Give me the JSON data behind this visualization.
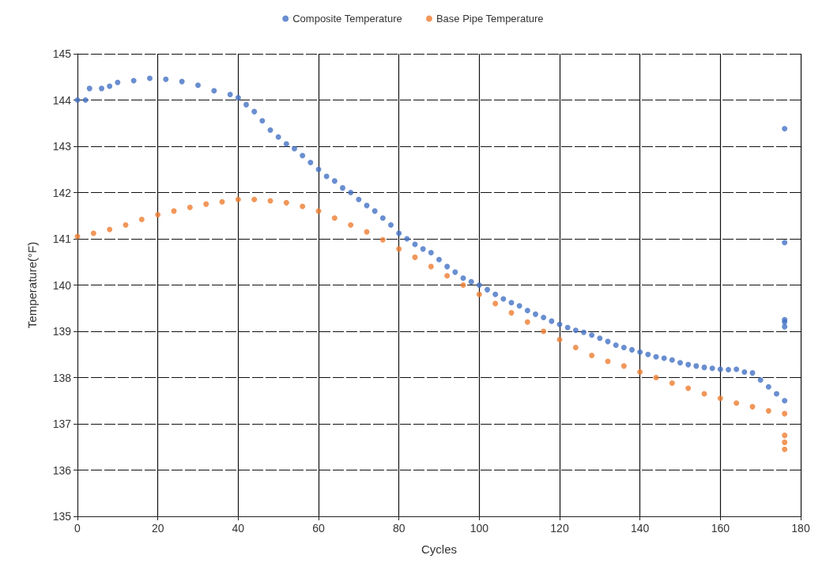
{
  "chart_data": {
    "type": "scatter",
    "xlabel": "Cycles",
    "ylabel": "Temperature(°F)",
    "xlim": [
      0,
      180
    ],
    "xticks": [
      0,
      20,
      40,
      60,
      80,
      100,
      120,
      140,
      160,
      180
    ],
    "ylim": [
      135,
      145
    ],
    "yticks": [
      135,
      136,
      137,
      138,
      139,
      140,
      141,
      142,
      143,
      144,
      145
    ],
    "grid": true,
    "legend": "top",
    "marker": "circle",
    "series": [
      {
        "name": "Composite Temperature",
        "color": "#4472c4",
        "x": [
          0,
          2,
          3,
          6,
          8,
          10,
          14,
          18,
          22,
          26,
          30,
          34,
          38,
          40,
          42,
          44,
          46,
          48,
          50,
          52,
          54,
          56,
          58,
          60,
          62,
          64,
          66,
          68,
          70,
          72,
          74,
          76,
          78,
          80,
          82,
          84,
          86,
          88,
          90,
          92,
          94,
          96,
          98,
          100,
          102,
          104,
          106,
          108,
          110,
          112,
          114,
          116,
          118,
          120,
          122,
          124,
          126,
          128,
          130,
          132,
          134,
          136,
          138,
          140,
          142,
          144,
          146,
          148,
          150,
          152,
          154,
          156,
          158,
          160,
          162,
          164,
          166,
          168,
          170,
          172,
          174,
          176,
          176,
          176,
          176,
          176,
          176
        ],
        "values": [
          144.0,
          144.0,
          144.25,
          144.25,
          144.3,
          144.38,
          144.42,
          144.47,
          144.45,
          144.4,
          144.32,
          144.2,
          144.12,
          144.05,
          143.9,
          143.75,
          143.55,
          143.35,
          143.2,
          143.05,
          142.95,
          142.8,
          142.65,
          142.5,
          142.35,
          142.25,
          142.1,
          142.0,
          141.85,
          141.72,
          141.6,
          141.45,
          141.3,
          141.12,
          141.0,
          140.88,
          140.78,
          140.7,
          140.55,
          140.4,
          140.28,
          140.15,
          140.07,
          140.0,
          139.9,
          139.8,
          139.7,
          139.62,
          139.55,
          139.45,
          139.37,
          139.3,
          139.22,
          139.15,
          139.08,
          139.02,
          138.98,
          138.92,
          138.85,
          138.78,
          138.7,
          138.65,
          138.6,
          138.55,
          138.5,
          138.45,
          138.42,
          138.38,
          138.32,
          138.28,
          138.25,
          138.22,
          138.2,
          138.18,
          138.17,
          138.18,
          138.12,
          138.1,
          137.95,
          137.8,
          137.65,
          137.5,
          143.38,
          140.92,
          139.25,
          139.2,
          139.1
        ]
      },
      {
        "name": "Base Pipe Temperature",
        "color": "#ed7d31",
        "x": [
          0,
          4,
          8,
          12,
          16,
          20,
          24,
          28,
          32,
          36,
          40,
          44,
          48,
          52,
          56,
          60,
          64,
          68,
          72,
          76,
          80,
          84,
          88,
          92,
          96,
          100,
          104,
          108,
          112,
          116,
          120,
          124,
          128,
          132,
          136,
          140,
          144,
          148,
          152,
          156,
          160,
          164,
          168,
          172,
          176,
          176,
          176,
          176
        ],
        "values": [
          141.05,
          141.12,
          141.2,
          141.3,
          141.42,
          141.52,
          141.6,
          141.68,
          141.75,
          141.8,
          141.85,
          141.85,
          141.82,
          141.78,
          141.7,
          141.6,
          141.45,
          141.3,
          141.15,
          140.98,
          140.78,
          140.6,
          140.4,
          140.2,
          140.0,
          139.8,
          139.6,
          139.4,
          139.2,
          139.0,
          138.82,
          138.65,
          138.48,
          138.35,
          138.25,
          138.12,
          138.0,
          137.88,
          137.77,
          137.65,
          137.55,
          137.45,
          137.37,
          137.28,
          137.22,
          136.75,
          136.6,
          136.45
        ]
      }
    ]
  }
}
